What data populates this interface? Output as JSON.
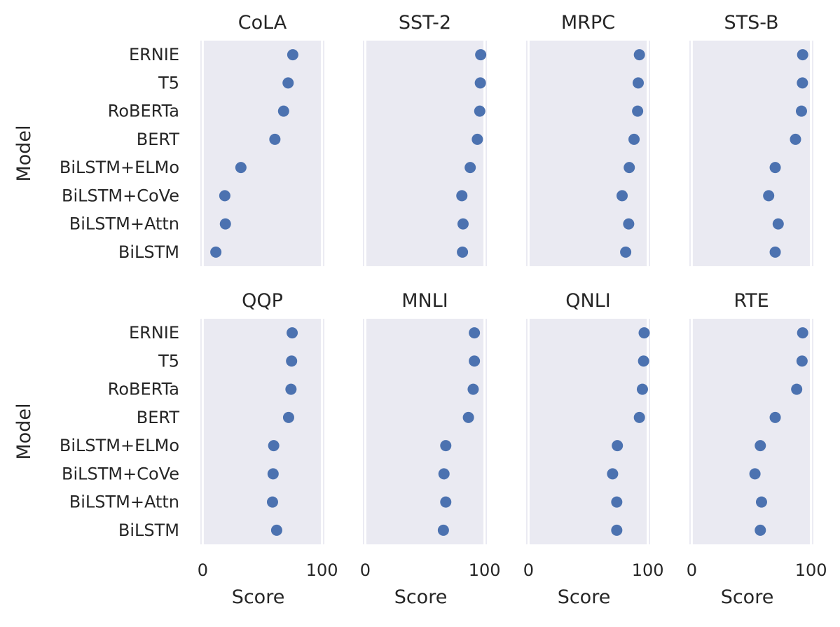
{
  "chart_data": {
    "type": "scatter",
    "layout": "faceted-dot-plot",
    "models": [
      "ERNIE",
      "T5",
      "RoBERTa",
      "BERT",
      "BiLSTM+ELMo",
      "BiLSTM+CoVe",
      "BiLSTM+Attn",
      "BiLSTM"
    ],
    "xlabel": "Score",
    "ylabel": "Model",
    "xlim": [
      -2,
      102
    ],
    "xticks": [
      0,
      100
    ],
    "grid": true,
    "marker_color": "#4C72B0",
    "panel_bg": "#EAEAF2",
    "panels": [
      {
        "title": "CoLA",
        "values": [
          75.5,
          71.6,
          67.8,
          60.5,
          32.0,
          18.5,
          19.0,
          11.0
        ]
      },
      {
        "title": "SST-2",
        "values": [
          96.8,
          96.5,
          96.0,
          94.0,
          88.0,
          81.0,
          82.0,
          81.5
        ]
      },
      {
        "title": "MRPC",
        "values": [
          93.0,
          92.0,
          91.5,
          88.5,
          84.5,
          78.5,
          84.0,
          81.5
        ]
      },
      {
        "title": "STS-B",
        "values": [
          93.0,
          92.8,
          92.0,
          87.0,
          70.0,
          64.5,
          72.5,
          70.0
        ]
      },
      {
        "title": "QQP",
        "values": [
          75.0,
          74.5,
          74.0,
          72.0,
          59.5,
          59.0,
          58.5,
          62.0
        ]
      },
      {
        "title": "MNLI",
        "values": [
          91.5,
          91.5,
          90.5,
          86.5,
          67.5,
          66.0,
          67.5,
          65.5
        ]
      },
      {
        "title": "QNLI",
        "values": [
          97.0,
          96.5,
          95.5,
          93.0,
          74.5,
          70.5,
          74.0,
          74.0
        ]
      },
      {
        "title": "RTE",
        "values": [
          93.0,
          92.5,
          88.0,
          70.0,
          57.5,
          53.0,
          58.5,
          57.5
        ]
      }
    ]
  }
}
